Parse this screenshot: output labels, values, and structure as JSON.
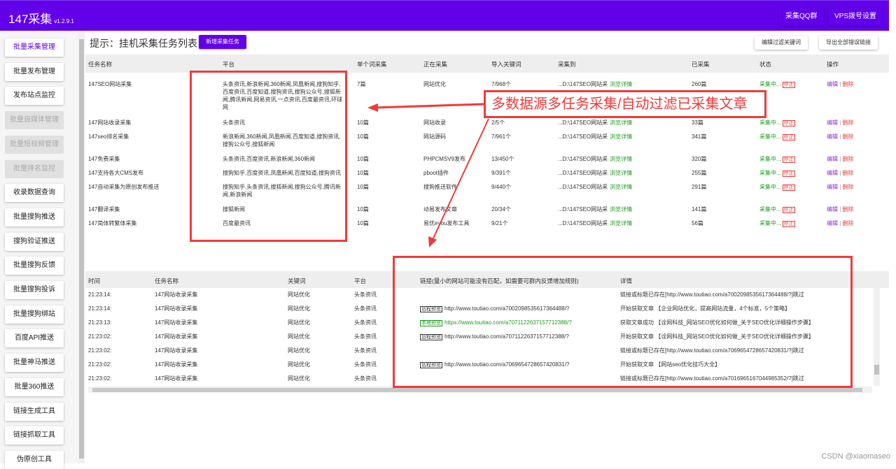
{
  "header": {
    "app_name": "147采集",
    "version": "v1.2.9.1",
    "buttons": [
      "采集QQ群",
      "VPS拨号设置"
    ],
    "color": "#6200ea"
  },
  "sidebar": {
    "items": [
      {
        "label": "批量采集管理",
        "state": "active"
      },
      {
        "label": "批量发布管理",
        "state": "normal"
      },
      {
        "label": "发布站点监控",
        "state": "normal"
      },
      {
        "label": "批量自媒体管理",
        "state": "disabled"
      },
      {
        "label": "批量短视频管理",
        "state": "disabled"
      },
      {
        "label": "批量排名监控",
        "state": "disabled"
      },
      {
        "label": "收录数据查询",
        "state": "normal"
      },
      {
        "label": "批量搜狗推送",
        "state": "normal"
      },
      {
        "label": "搜狗验证推送",
        "state": "normal"
      },
      {
        "label": "批量搜狗反馈",
        "state": "normal"
      },
      {
        "label": "批量搜狗投诉",
        "state": "normal"
      },
      {
        "label": "批量搜狗绑站",
        "state": "normal"
      },
      {
        "label": "百度API推送",
        "state": "normal"
      },
      {
        "label": "批量神马推送",
        "state": "normal"
      },
      {
        "label": "批量360推送",
        "state": "normal"
      },
      {
        "label": "链接生成工具",
        "state": "normal"
      },
      {
        "label": "链接抓取工具",
        "state": "normal"
      },
      {
        "label": "伪原创工具",
        "state": "normal"
      }
    ]
  },
  "main": {
    "title": "提示：挂机采集任务列表",
    "add_button": "新增采集任务",
    "edit_filter_button": "编辑过滤关键词",
    "export_button": "导出全部错误链接"
  },
  "tasks": {
    "columns": [
      "任务名称",
      "平台",
      "单个词采集",
      "正在采集",
      "导入关键词",
      "采集到",
      "已采集",
      "状态",
      "操作"
    ],
    "view_label": "浏览详情",
    "status_label": "采集中...",
    "stop_label": "停止",
    "edit_label": "编辑",
    "sep": "|",
    "delete_label": "删除",
    "rows": [
      {
        "name": "147SEO网站采集",
        "platform": "头条资讯,新浪新闻,360新闻,凤凰新闻,搜狗知乎,百度资讯,百度知道,搜狗资讯,搜狗公众号,搜狐新闻,腾讯新闻,网易资讯,一点资讯,百度最资讯,环球网",
        "per": "7篇",
        "current": "网站优化",
        "keywords": "7/968个",
        "to": "...D:\\147SEO网站采",
        "collected": "260篇"
      },
      {
        "name": "147网站收录采集",
        "platform": "头条资讯",
        "per": "10篇",
        "current": "网站收录",
        "keywords": "2/5个",
        "to": "...D:\\147SEO网站采",
        "collected": "33篇"
      },
      {
        "name": "147seo排名采集",
        "platform": "新浪新闻,360新闻,凤凰新闻,百度知道,搜狗资讯,搜狗公众号,搜狐新闻",
        "per": "10篇",
        "current": "网站源码",
        "keywords": "7/961个",
        "to": "...D:\\147SEO网站采",
        "collected": "341篇"
      },
      {
        "name": "147免费采集",
        "platform": "头条资讯,百度资讯,新浪新闻,360新闻",
        "per": "10篇",
        "current": "PHPCMSV9发布",
        "keywords": "13/450个",
        "to": "...D:\\147SEO网站采",
        "collected": "320篇"
      },
      {
        "name": "147支持各大CMS发布",
        "platform": "搜狗知乎,百度资讯,凤凰新闻,百度知道,搜狗资讯",
        "per": "10篇",
        "current": "pboot插件",
        "keywords": "9/391个",
        "to": "...D:\\147SEO网站采",
        "collected": "255篇"
      },
      {
        "name": "147自动采集为原创发布推送",
        "platform": "搜狗知乎,头条资讯,搜狐新闻,搜狗公众号,腾讯新闻,新浪新闻",
        "per": "10篇",
        "current": "搜狗推送软件",
        "keywords": "9/440个",
        "to": "...D:\\147SEO网站采",
        "collected": "291篇"
      },
      {
        "name": "147翻译采集",
        "platform": "搜狐新闻",
        "per": "10篇",
        "current": "动易发布文章",
        "keywords": "20/34个",
        "to": "...D:\\147SEO网站采",
        "collected": "141篇"
      },
      {
        "name": "147简体转繁体采集",
        "platform": "百度最资讯",
        "per": "10篇",
        "current": "易优eyou发布工具",
        "keywords": "9/21个",
        "to": "...D:\\147SEO网站采",
        "collected": "56篇"
      }
    ]
  },
  "log": {
    "columns": [
      "时间",
      "任务名称",
      "关键词",
      "平台",
      "链接(量小的网站可能没有匹配，如需要可群内反馈增加规则)",
      "详情"
    ],
    "remote_tag": "远程预览",
    "local_tag": "本地预览",
    "rows": [
      {
        "time": "21:23:14:",
        "task": "147网站收录采集",
        "keyword": "网站优化",
        "platform": "头条资讯",
        "tag": "",
        "link": "",
        "detail": "链接或标题已存在[http://www.toutiao.com/a7002098535617364488/?]跳过"
      },
      {
        "time": "21:23:14:",
        "task": "147网站收录采集",
        "keyword": "网站优化",
        "platform": "头条资讯",
        "tag": "remote",
        "link": "http://www.toutiao.com/a7002098535617364488/?",
        "detail": "开始获取文章 【企业网站优化，提高网站流量，4个标准，5个策略】"
      },
      {
        "time": "21:23:13:",
        "task": "147网站收录采集",
        "keyword": "网站优化",
        "platform": "头条资讯",
        "tag": "local",
        "link": "https://www.toutiao.com/a7071122637157712388/?",
        "detail": "获取文章成功 【诠网科技_网站SEO优化如何做_关于SEO优化详细操作步骤】"
      },
      {
        "time": "21:23:02:",
        "task": "147网站收录采集",
        "keyword": "网站优化",
        "platform": "头条资讯",
        "tag": "remote",
        "link": "http://www.toutiao.com/a7071122637157712388/?",
        "detail": "开始获取文章 【诠网科技_网站SEO优化如何做_关于SEO优化详细操作步骤】"
      },
      {
        "time": "21:23:02:",
        "task": "147网站收录采集",
        "keyword": "网站优化",
        "platform": "头条资讯",
        "tag": "",
        "link": "",
        "detail": "链接或标题已存在[http://www.toutiao.com/a7069654728657420831/?]跳过"
      },
      {
        "time": "21:23:02:",
        "task": "147网站收录采集",
        "keyword": "网站优化",
        "platform": "头条资讯",
        "tag": "remote",
        "link": "http://www.toutiao.com/a7069654728657420831/?",
        "detail": "开始获取文章 【网站seo优化技巧大全】"
      },
      {
        "time": "21:23:02:",
        "task": "147网站收录采集",
        "keyword": "网站优化",
        "platform": "头条资讯",
        "tag": "",
        "link": "",
        "detail": "链接或标题已存在[http://www.toutiao.com/a7016965167044985352/?]跳过"
      }
    ]
  },
  "annotation": {
    "text": "多数据源多任务采集/自动过滤已采集文章",
    "color": "#f03a3a"
  },
  "watermark": "CSDN @xiaomaseo"
}
